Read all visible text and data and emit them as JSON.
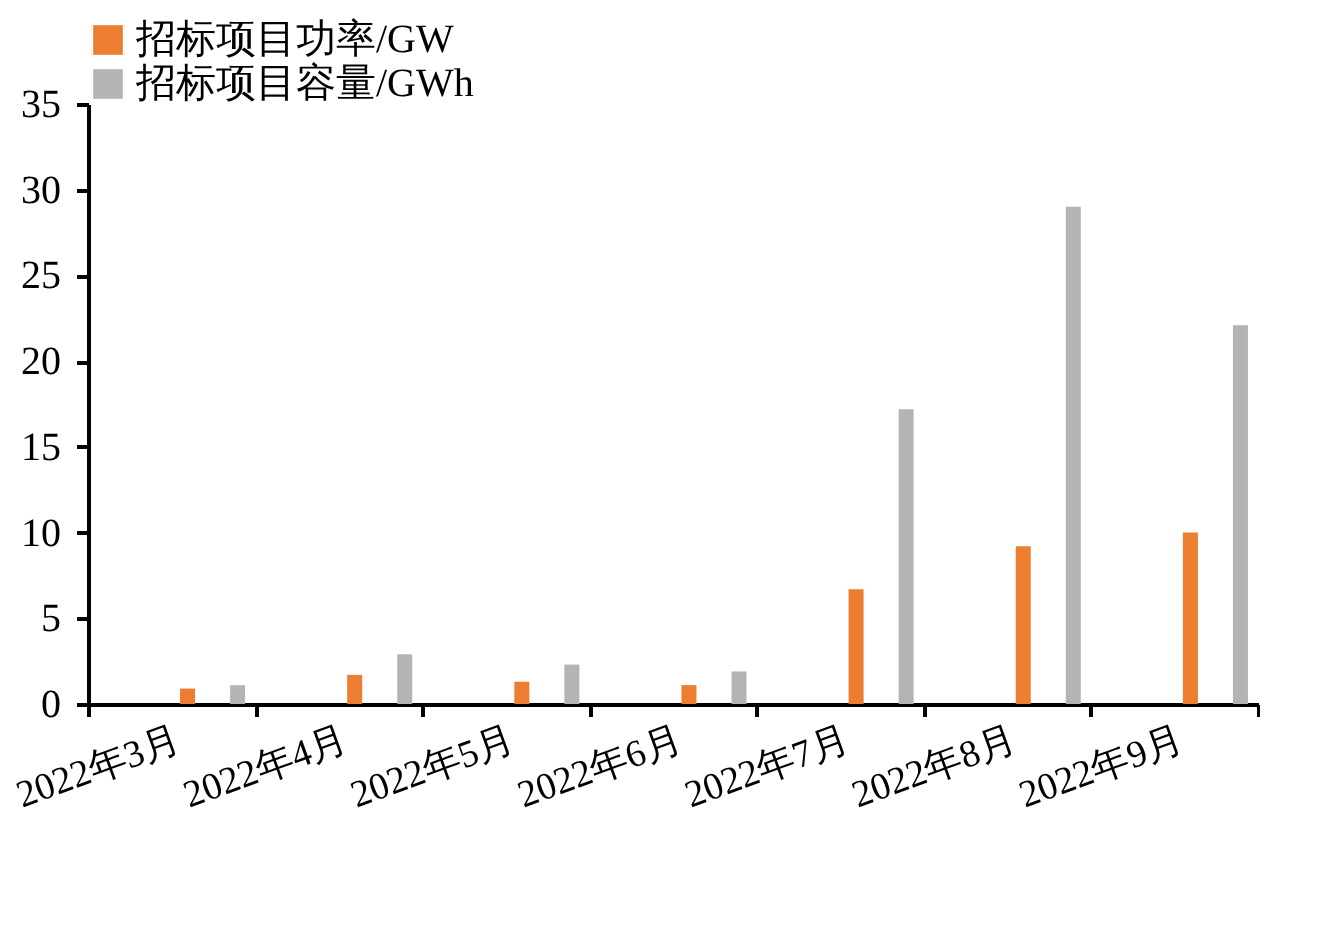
{
  "chart_data": {
    "type": "bar",
    "categories": [
      "2022年3月",
      "2022年4月",
      "2022年5月",
      "2022年6月",
      "2022年7月",
      "2022年8月",
      "2022年9月"
    ],
    "series": [
      {
        "name": "招标项目功率/GW",
        "color": "#ed7d31",
        "values": [
          0.9,
          1.7,
          1.3,
          1.1,
          6.7,
          9.2,
          10.0
        ]
      },
      {
        "name": "招标项目容量/GWh",
        "color": "#b4b4b4",
        "values": [
          1.1,
          2.9,
          2.3,
          1.9,
          17.2,
          29.0,
          22.1
        ]
      }
    ],
    "ylim": [
      0,
      35
    ],
    "yticks": [
      0,
      5,
      10,
      15,
      20,
      25,
      30,
      35
    ],
    "grid": false,
    "legend": "top"
  }
}
